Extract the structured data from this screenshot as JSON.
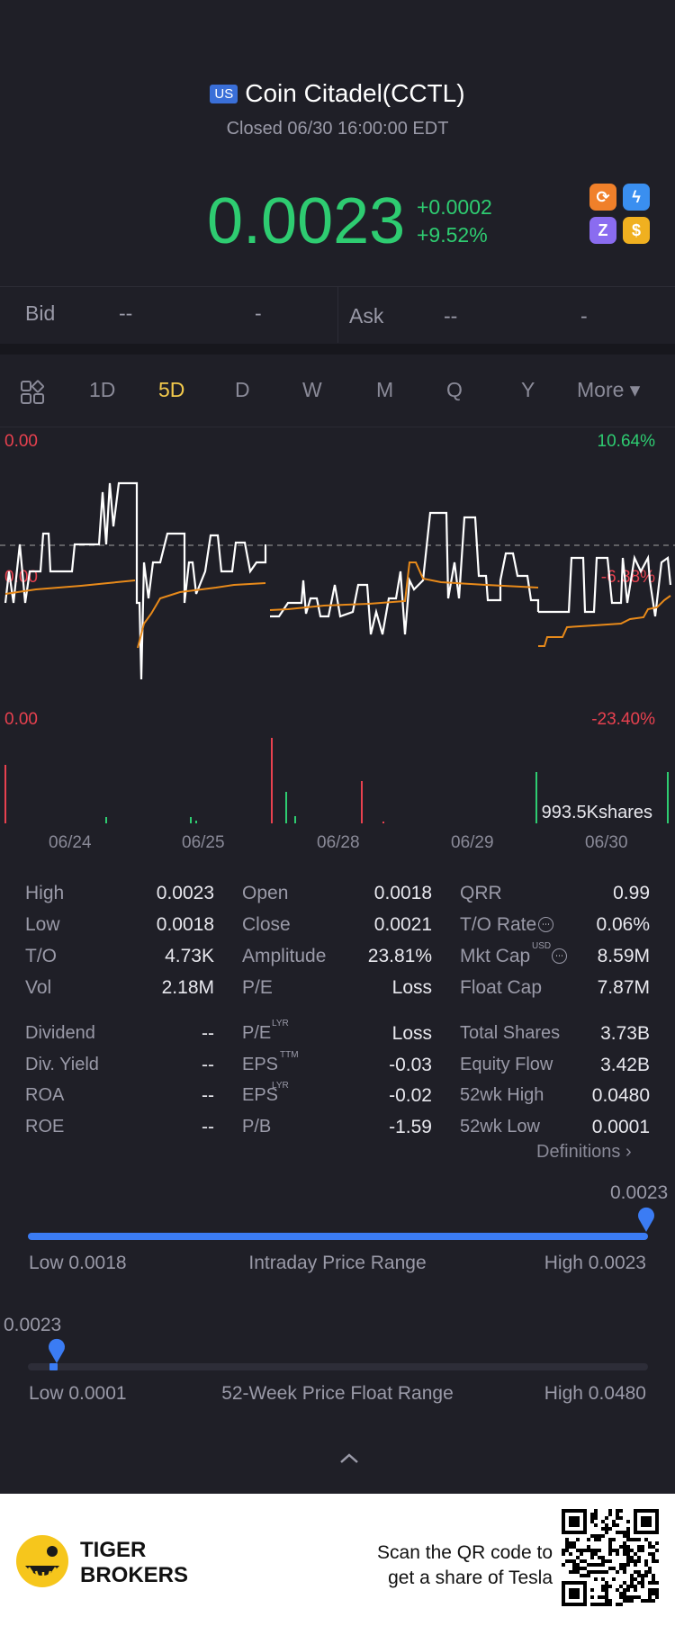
{
  "header": {
    "market_badge": "US",
    "title": "Coin Citadel(CCTL)",
    "status": "Closed 06/30 16:00:00 EDT",
    "price": "0.0023",
    "change": "+0.0002",
    "change_pct": "+9.52%",
    "icons": [
      "chart-swap-icon",
      "flash-icon",
      "z-icon",
      "dollar-icon"
    ]
  },
  "quote": {
    "bid_label": "Bid",
    "bid_price": "--",
    "bid_size": "-",
    "ask_label": "Ask",
    "ask_price": "--",
    "ask_size": "-"
  },
  "tabs": [
    "1D",
    "5D",
    "D",
    "W",
    "M",
    "Q",
    "Y",
    "More ▾"
  ],
  "active_tab": "5D",
  "chart": {
    "left_top": "0.00",
    "left_mid": "0.00",
    "left_bottom": "0.00",
    "right_top": "10.64%",
    "right_mid": "-6.38%",
    "right_bottom": "-23.40%",
    "volume_label": "993.5Kshares",
    "dates": [
      "06/24",
      "06/25",
      "06/28",
      "06/29",
      "06/30"
    ]
  },
  "chart_data": {
    "type": "line",
    "y_axis_right": [
      "10.64%",
      "-6.38%",
      "-23.40%"
    ],
    "x_ticks": [
      "06/24",
      "06/25",
      "06/28",
      "06/29",
      "06/30"
    ],
    "volume_label": "993.5Kshares"
  },
  "stats": {
    "col1": [
      {
        "label": "High",
        "value": "0.0023"
      },
      {
        "label": "Low",
        "value": "0.0018"
      },
      {
        "label": "T/O",
        "value": "4.73K"
      },
      {
        "label": "Vol",
        "value": "2.18M"
      },
      {
        "label": "Dividend",
        "value": "--"
      },
      {
        "label": "Div. Yield",
        "value": "--"
      },
      {
        "label": "ROA",
        "value": "--"
      },
      {
        "label": "ROE",
        "value": "--"
      }
    ],
    "col2": [
      {
        "label": "Open",
        "value": "0.0018"
      },
      {
        "label": "Close",
        "value": "0.0021"
      },
      {
        "label": "Amplitude",
        "value": "23.81%"
      },
      {
        "label": "P/E",
        "value": "Loss"
      },
      {
        "label": "P/E",
        "sup": "LYR",
        "value": "Loss"
      },
      {
        "label": "EPS",
        "sup": "TTM",
        "value": "-0.03"
      },
      {
        "label": "EPS",
        "sup": "LYR",
        "value": "-0.02"
      },
      {
        "label": "P/B",
        "value": "-1.59"
      }
    ],
    "col3": [
      {
        "label": "QRR",
        "value": "0.99"
      },
      {
        "label": "T/O Rate",
        "value": "0.06%"
      },
      {
        "label": "Mkt Cap",
        "sup": "USD",
        "value": "8.59M"
      },
      {
        "label": "Float Cap",
        "value": "7.87M"
      },
      {
        "label": "Total Shares",
        "value": "3.73B"
      },
      {
        "label": "Equity Flow",
        "value": "3.42B"
      },
      {
        "label": "52wk High",
        "value": "0.0480"
      },
      {
        "label": "52wk Low",
        "value": "0.0001"
      }
    ],
    "definitions": "Definitions"
  },
  "intraday": {
    "marker_value": "0.0023",
    "low": "Low 0.0018",
    "title": "Intraday Price Range",
    "high": "High 0.0023",
    "position": 1.0
  },
  "week52": {
    "marker_value": "0.0023",
    "low": "Low 0.0001",
    "title": "52-Week Price Float Range",
    "high": "High 0.0480",
    "position": 0.046
  },
  "footer": {
    "brand_line1": "TIGER",
    "brand_line2": "BROKERS",
    "promo_line1": "Scan the QR code to",
    "promo_line2": "get a share of Tesla"
  },
  "colors": {
    "up": "#2ecc71",
    "down": "#e8414f",
    "accent": "#f2c94c",
    "blue": "#3b7cf4",
    "avg_line": "#e88a1a"
  }
}
